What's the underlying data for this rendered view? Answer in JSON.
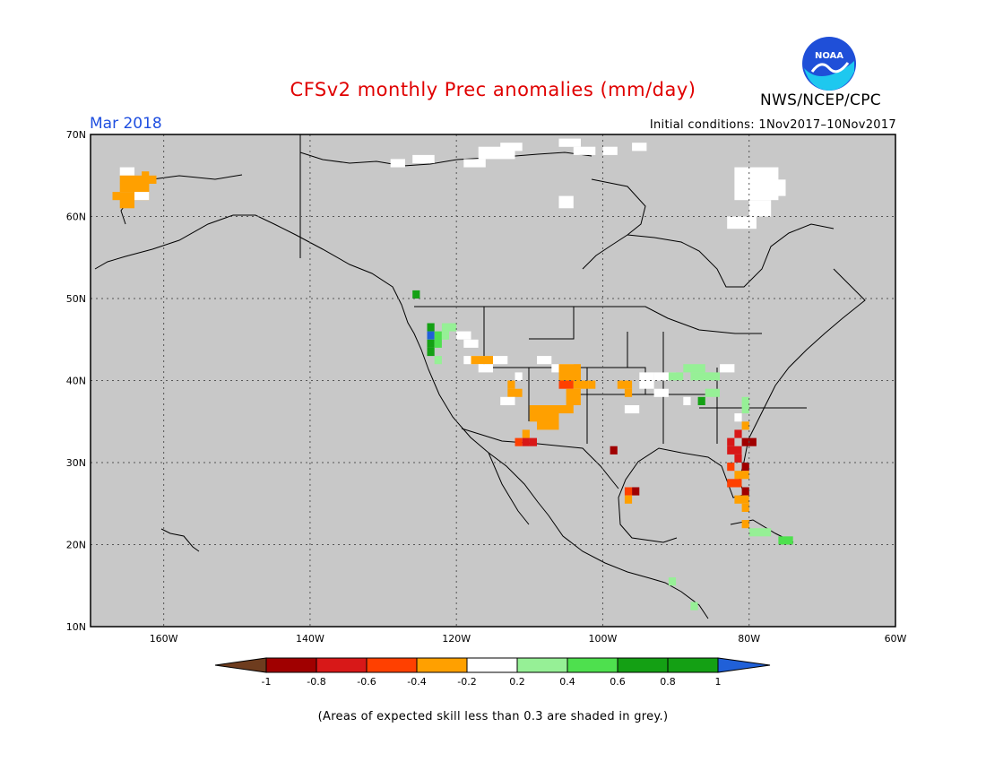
{
  "header": {
    "title": "CFSv2 monthly Prec anomalies (mm/day)",
    "period": "Mar 2018",
    "initial_conditions": "Initial conditions: 1Nov2017–10Nov2017",
    "organization": "NWS/NCEP/CPC",
    "logo_text": "NOAA"
  },
  "map": {
    "lon_range": [
      -170,
      -60
    ],
    "lat_range": [
      10,
      70
    ],
    "lat_ticks": [
      "70N",
      "60N",
      "50N",
      "40N",
      "30N",
      "20N",
      "10N"
    ],
    "lon_ticks": [
      "160W",
      "140W",
      "120W",
      "100W",
      "80W",
      "60W"
    ],
    "colors": {
      "ocean_land_grey": "#c8c8c8",
      "white": "#ffffff",
      "orange": "#ffa000",
      "red_orange": "#ff4000",
      "red": "#d81818",
      "dark_red": "#a00000",
      "light_green": "#96f096",
      "green": "#4ee04e",
      "dark_green": "#14a014",
      "blue": "#2060d8"
    }
  },
  "legend": {
    "labels": [
      "-1",
      "-0.8",
      "-0.6",
      "-0.4",
      "-0.2",
      "0.2",
      "0.4",
      "0.6",
      "0.8",
      "1"
    ],
    "colors": [
      "#6e3c1e",
      "#a00000",
      "#d81818",
      "#ff4000",
      "#ffa000",
      "#ffffff",
      "#96f096",
      "#4ee04e",
      "#14a014",
      "#14a014",
      "#2060d8"
    ]
  },
  "footnote": "(Areas of expected skill less than 0.3 are shaded in grey.)"
}
